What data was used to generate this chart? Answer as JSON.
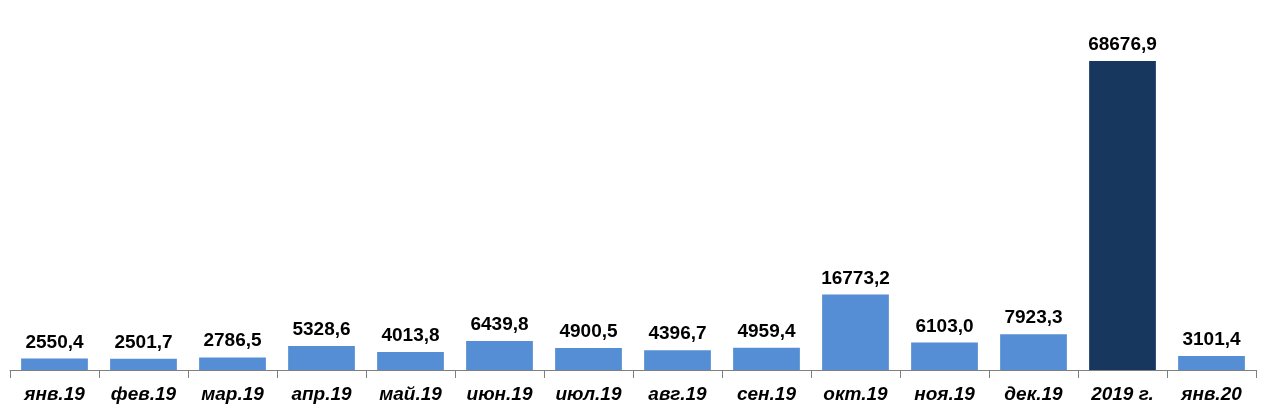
{
  "chart_data": {
    "type": "bar",
    "categories": [
      "янв.19",
      "фев.19",
      "мар.19",
      "апр.19",
      "май.19",
      "июн.19",
      "июл.19",
      "авг.19",
      "сен.19",
      "окт.19",
      "ноя.19",
      "дек.19",
      "2019 г.",
      "янв.20"
    ],
    "values": [
      2550.4,
      2501.7,
      2786.5,
      5328.6,
      4013.8,
      6439.8,
      4900.5,
      4396.7,
      4959.4,
      16773.2,
      6103.0,
      7923.3,
      68676.9,
      3101.4
    ],
    "value_labels": [
      "2550,4",
      "2501,7",
      "2786,5",
      "5328,6",
      "4013,8",
      "6439,8",
      "4900,5",
      "4396,7",
      "4959,4",
      "16773,2",
      "6103,0",
      "7923,3",
      "68676,9",
      "3101,4"
    ],
    "colors": [
      "#558ed5",
      "#558ed5",
      "#558ed5",
      "#558ed5",
      "#558ed5",
      "#558ed5",
      "#558ed5",
      "#558ed5",
      "#558ed5",
      "#558ed5",
      "#558ed5",
      "#558ed5",
      "#17375e",
      "#558ed5"
    ]
  }
}
